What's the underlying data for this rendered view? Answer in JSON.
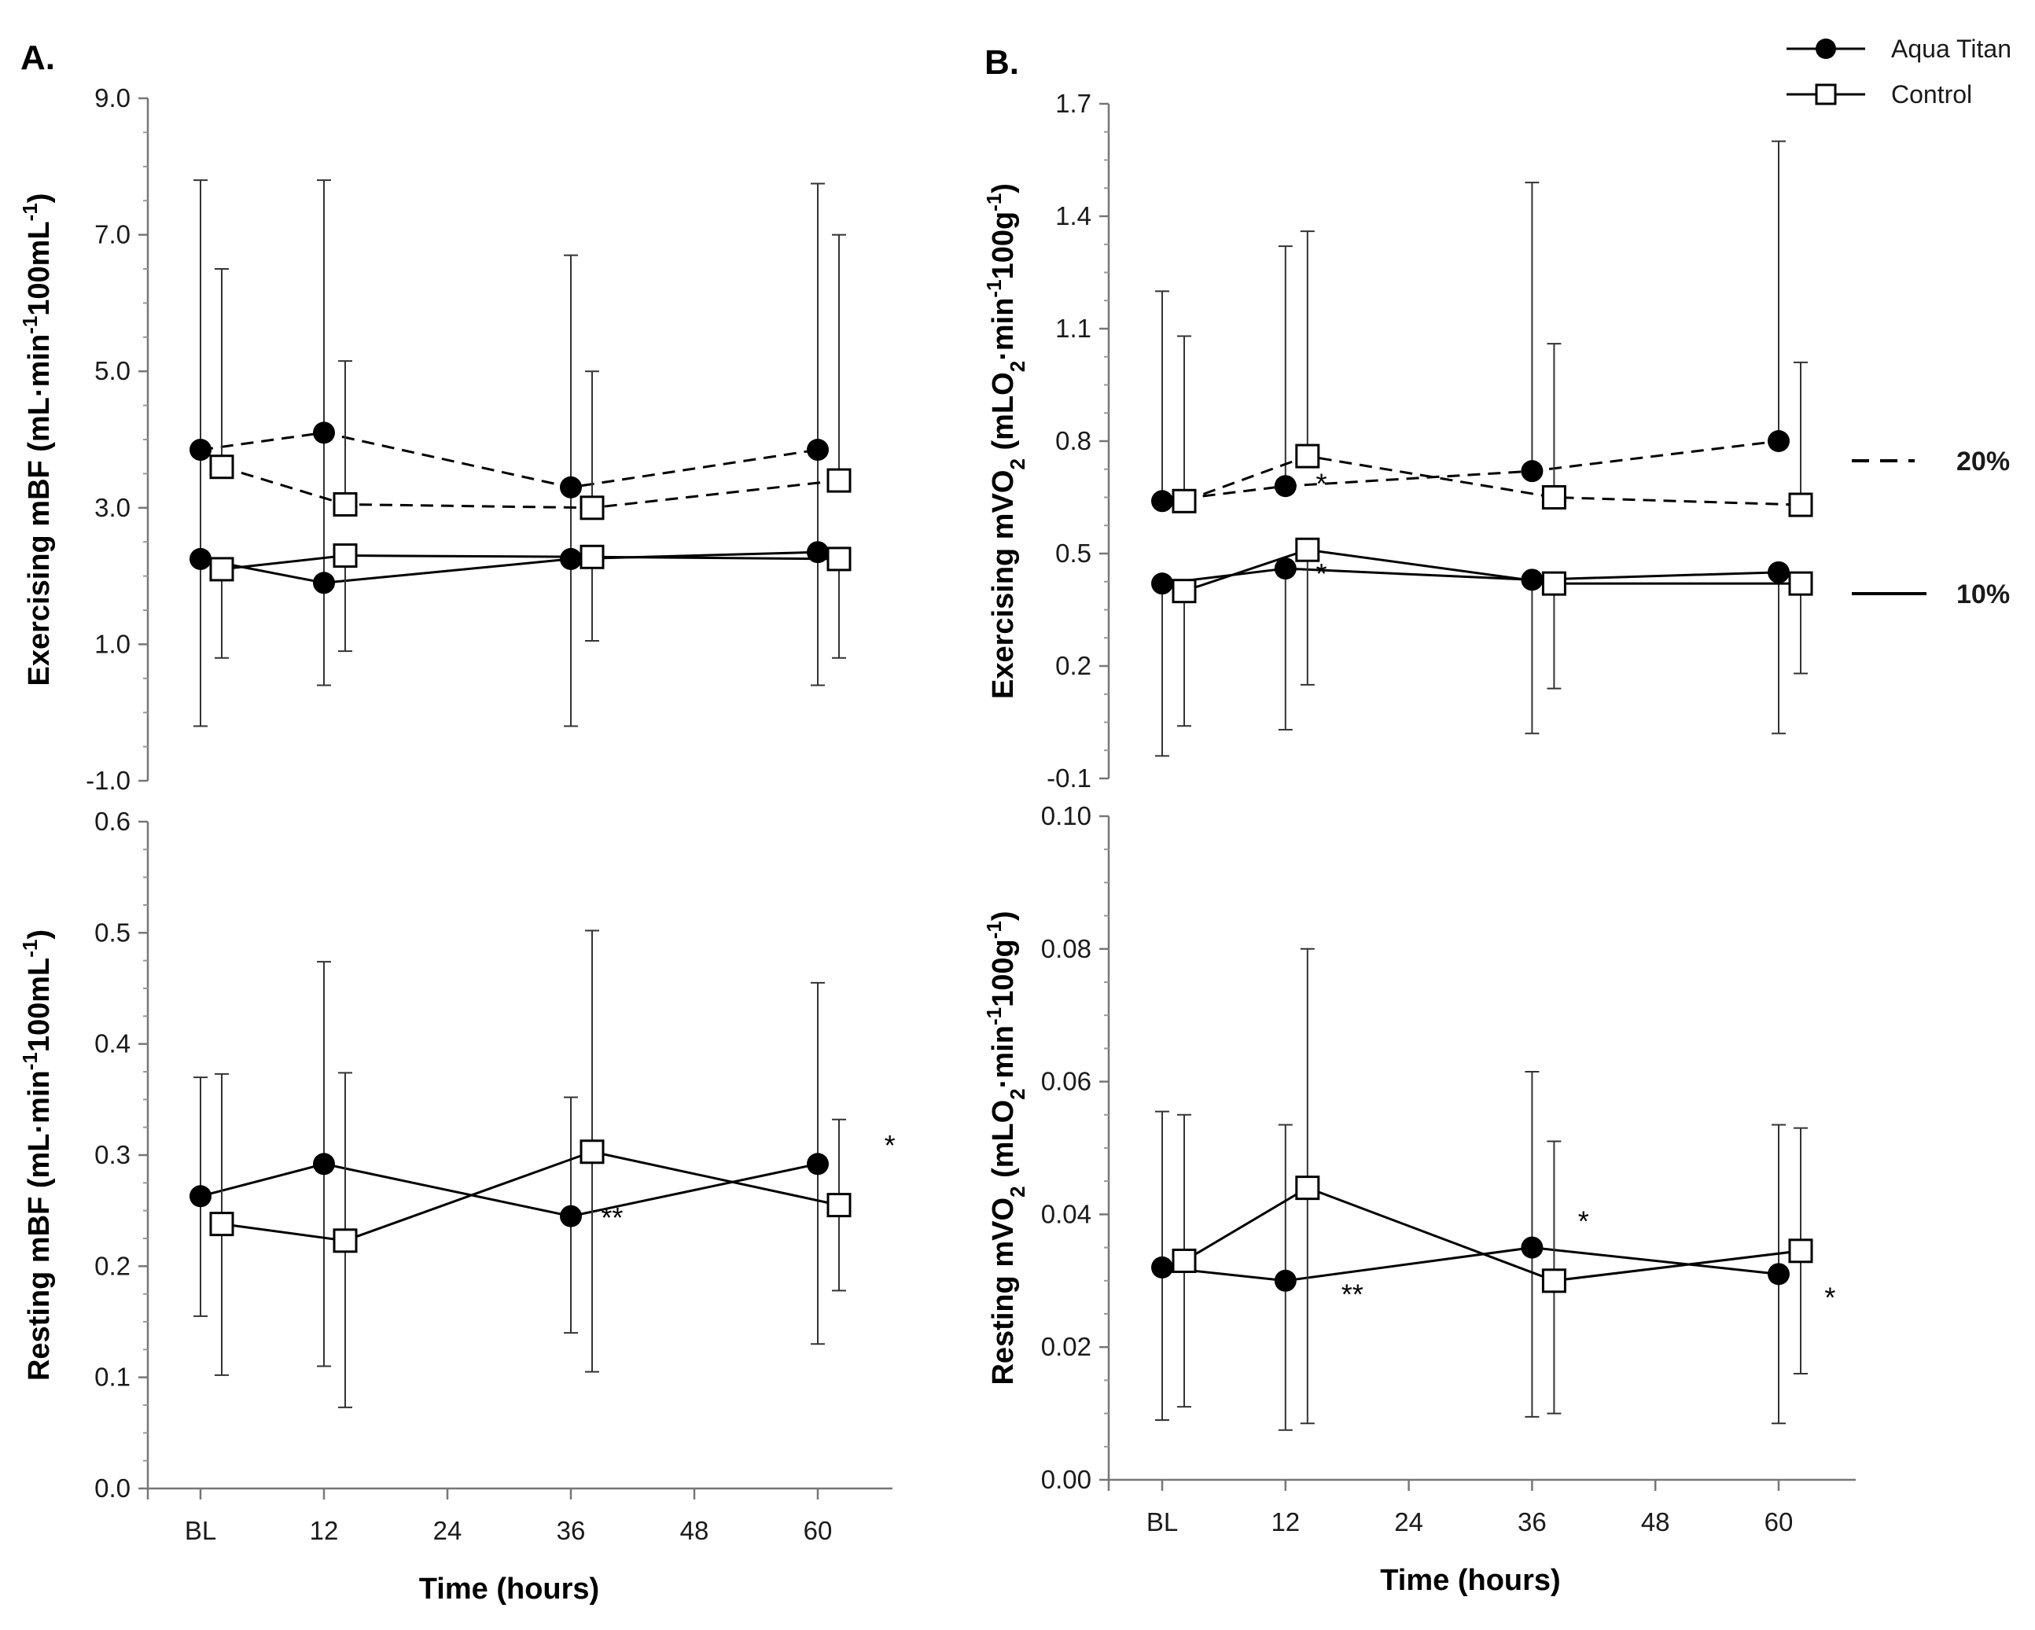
{
  "panel_labels": [
    "A.",
    "B."
  ],
  "legend": {
    "series": [
      {
        "key": "aqua",
        "label": "Aqua Titan",
        "marker": "filled-circle"
      },
      {
        "key": "control",
        "label": "Control",
        "marker": "open-square"
      }
    ],
    "lines": [
      {
        "label": "20%",
        "style": "dashed"
      },
      {
        "label": "10%",
        "style": "solid"
      }
    ]
  },
  "chart_data": [
    {
      "id": "A-top",
      "type": "line",
      "ylabel_main": "Exercising mBF (mL·min",
      "ylabel_sup1": "-1",
      "ylabel_mid": "100mL",
      "ylabel_sup2": "-1",
      "ylabel_end": ")",
      "xlabel": "",
      "ylim": [
        -1.0,
        9.0
      ],
      "yticks": [
        -1.0,
        1.0,
        3.0,
        5.0,
        7.0,
        9.0
      ],
      "ytick_labels": [
        "-1.0",
        "1.0",
        "3.0",
        "5.0",
        "7.0",
        "9.0"
      ],
      "xticks": [],
      "x": [
        0,
        12,
        36,
        60
      ],
      "series": [
        {
          "name": "Aqua Titan 20%",
          "key": "aqua",
          "style": "dashed",
          "values": [
            3.85,
            4.1,
            3.3,
            3.85
          ],
          "err_low": [
            -0.2,
            0.4,
            -0.2,
            0.4
          ],
          "err_high": [
            7.8,
            7.8,
            6.7,
            7.75
          ]
        },
        {
          "name": "Control 20%",
          "key": "control",
          "style": "dashed",
          "values": [
            3.6,
            3.05,
            3.0,
            3.4
          ],
          "err_low": [],
          "err_high": [
            6.5,
            5.15,
            5.0,
            7.0
          ]
        },
        {
          "name": "Aqua Titan 10%",
          "key": "aqua",
          "style": "solid",
          "values": [
            2.25,
            1.9,
            2.25,
            2.35
          ],
          "err_low": [],
          "err_high": []
        },
        {
          "name": "Control 10%",
          "key": "control",
          "style": "solid",
          "values": [
            2.1,
            2.3,
            2.28,
            2.25
          ],
          "err_low": [
            0.8,
            0.9,
            1.05,
            0.8
          ],
          "err_high": []
        }
      ],
      "annotations": []
    },
    {
      "id": "B-top",
      "type": "line",
      "ylabel_main": "Exercising mVO",
      "ylabel_sub": "2",
      "ylabel_rest": " (mLO",
      "ylabel_sub2": "2",
      "ylabel_rest2": "·min",
      "ylabel_sup1": "-1",
      "ylabel_rest3": "100g",
      "ylabel_sup2": "-1",
      "ylabel_end": ")",
      "xlabel": "",
      "ylim": [
        -0.1,
        1.7
      ],
      "yticks": [
        -0.1,
        0.2,
        0.5,
        0.8,
        1.1,
        1.4,
        1.7
      ],
      "ytick_labels": [
        "-0.1",
        "0.2",
        "0.5",
        "0.8",
        "1.1",
        "1.4",
        "1.7"
      ],
      "xticks": [],
      "x": [
        0,
        12,
        36,
        60
      ],
      "series": [
        {
          "name": "Aqua Titan 20%",
          "key": "aqua",
          "style": "dashed",
          "values": [
            0.64,
            0.68,
            0.72,
            0.8
          ],
          "err_low": [],
          "err_high": [
            1.2,
            1.32,
            1.49,
            1.6
          ]
        },
        {
          "name": "Control 20%",
          "key": "control",
          "style": "dashed",
          "values": [
            0.64,
            0.76,
            0.65,
            0.63
          ],
          "err_low": [],
          "err_high": [
            1.08,
            1.36,
            1.06,
            1.01
          ]
        },
        {
          "name": "Aqua Titan 10%",
          "key": "aqua",
          "style": "solid",
          "values": [
            0.42,
            0.46,
            0.43,
            0.45
          ],
          "err_low": [
            -0.04,
            0.03,
            0.02,
            0.02
          ],
          "err_high": []
        },
        {
          "name": "Control 10%",
          "key": "control",
          "style": "solid",
          "values": [
            0.4,
            0.51,
            0.42,
            0.42
          ],
          "err_low": [
            0.04,
            0.15,
            0.14,
            0.18
          ],
          "err_high": []
        }
      ],
      "annotations": [
        {
          "text": "*",
          "x": 15.5,
          "y": 0.66
        },
        {
          "text": "*",
          "x": 15.5,
          "y": 0.42
        }
      ]
    },
    {
      "id": "A-bottom",
      "type": "line",
      "ylabel_main": "Resting mBF (mL·min",
      "ylabel_sup1": "-1",
      "ylabel_mid": "100mL",
      "ylabel_sup2": "-1",
      "ylabel_end": ")",
      "xlabel": "Time (hours)",
      "ylim": [
        0.0,
        0.6
      ],
      "yticks": [
        0.0,
        0.1,
        0.2,
        0.3,
        0.4,
        0.5,
        0.6
      ],
      "ytick_labels": [
        "0.0",
        "0.1",
        "0.2",
        "0.3",
        "0.4",
        "0.5",
        "0.6"
      ],
      "xticks": [
        0,
        12,
        24,
        36,
        48,
        60
      ],
      "xtick_labels": [
        "BL",
        "12",
        "24",
        "36",
        "48",
        "60"
      ],
      "x": [
        0,
        12,
        36,
        60
      ],
      "series": [
        {
          "name": "Aqua Titan",
          "key": "aqua",
          "style": "solid",
          "values": [
            0.263,
            0.292,
            0.245,
            0.292
          ],
          "err_low": [
            0.155,
            0.11,
            0.14,
            0.13
          ],
          "err_high": [
            0.37,
            0.474,
            0.352,
            0.455
          ]
        },
        {
          "name": "Control",
          "key": "control",
          "style": "solid",
          "values": [
            0.238,
            0.223,
            0.303,
            0.255
          ],
          "err_low": [
            0.102,
            0.073,
            0.105,
            0.178
          ],
          "err_high": [
            0.373,
            0.374,
            0.502,
            0.332
          ]
        }
      ],
      "annotations": [
        {
          "text": "**",
          "x": 40,
          "y": 0.235
        },
        {
          "text": "*",
          "x": 67,
          "y": 0.3
        }
      ]
    },
    {
      "id": "B-bottom",
      "type": "line",
      "ylabel_main": "Resting mVO",
      "ylabel_sub": "2",
      "ylabel_rest": " (mLO",
      "ylabel_sub2": "2",
      "ylabel_rest2": "·min",
      "ylabel_sup1": "-1",
      "ylabel_rest3": "100g",
      "ylabel_sup2": "-1",
      "ylabel_end": ")",
      "xlabel": "Time (hours)",
      "ylim": [
        0.0,
        0.1
      ],
      "yticks": [
        0.0,
        0.02,
        0.04,
        0.06,
        0.08,
        0.1
      ],
      "ytick_labels": [
        "0.00",
        "0.02",
        "0.04",
        "0.06",
        "0.08",
        "0.10"
      ],
      "xticks": [
        0,
        12,
        24,
        36,
        48,
        60
      ],
      "xtick_labels": [
        "BL",
        "12",
        "24",
        "36",
        "48",
        "60"
      ],
      "x": [
        0,
        12,
        36,
        60
      ],
      "series": [
        {
          "name": "Aqua Titan",
          "key": "aqua",
          "style": "solid",
          "values": [
            0.032,
            0.03,
            0.035,
            0.031
          ],
          "err_low": [
            0.009,
            0.0075,
            0.0095,
            0.0085
          ],
          "err_high": [
            0.0555,
            0.0535,
            0.0615,
            0.0535
          ]
        },
        {
          "name": "Control",
          "key": "control",
          "style": "solid",
          "values": [
            0.033,
            0.044,
            0.03,
            0.0345
          ],
          "err_low": [
            0.011,
            0.0085,
            0.01,
            0.016
          ],
          "err_high": [
            0.055,
            0.08,
            0.051,
            0.053
          ]
        }
      ],
      "annotations": [
        {
          "text": "**",
          "x": 18.5,
          "y": 0.0265
        },
        {
          "text": "*",
          "x": 41,
          "y": 0.0375
        },
        {
          "text": "*",
          "x": 65,
          "y": 0.026
        }
      ]
    }
  ]
}
